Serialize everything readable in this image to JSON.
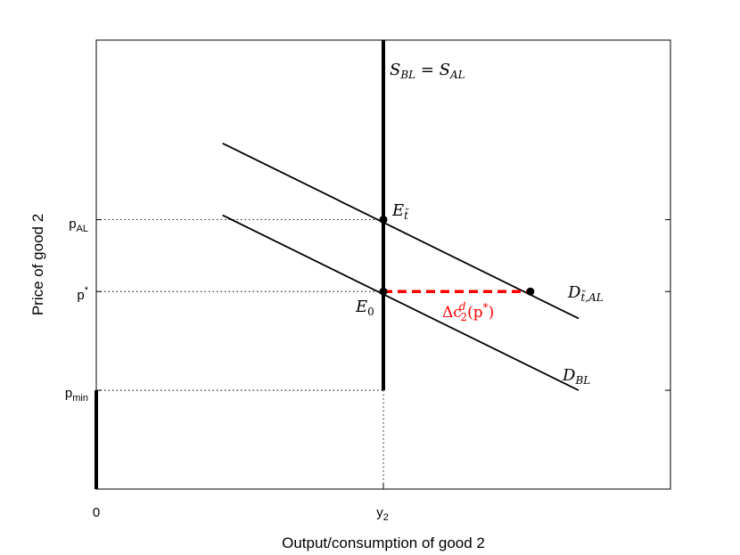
{
  "chart_data": {
    "type": "line",
    "xlabel": "Output/consumption of good 2",
    "ylabel": "Price of good 2",
    "x_ticks": [
      {
        "pos": 0,
        "label": "0",
        "sub": ""
      },
      {
        "pos": 0.5,
        "label": "y",
        "sub": "2"
      }
    ],
    "y_ticks": [
      {
        "pos": 0.22,
        "label": "p",
        "sub": "min",
        "sup": ""
      },
      {
        "pos": 0.44,
        "label": "p",
        "sub": "",
        "sup": "*"
      },
      {
        "pos": 0.6,
        "label": "p",
        "sub": "AL",
        "sup": ""
      }
    ],
    "xlim": [
      0,
      1
    ],
    "ylim": [
      0,
      1
    ],
    "series": [
      {
        "key": "supply",
        "points": [
          [
            0.5,
            0.22
          ],
          [
            0.5,
            1.0
          ]
        ],
        "color": "#000000"
      },
      {
        "key": "min_segment",
        "points": [
          [
            0,
            0
          ],
          [
            0,
            0.22
          ]
        ],
        "color": "#000000"
      },
      {
        "key": "demand_al",
        "points": [
          [
            0.22,
            0.77
          ],
          [
            0.84,
            0.38
          ]
        ],
        "color": "#000000"
      },
      {
        "key": "demand_bl",
        "points": [
          [
            0.22,
            0.61
          ],
          [
            0.84,
            0.22
          ]
        ],
        "color": "#000000"
      }
    ],
    "shift": {
      "from": [
        0.5,
        0.44
      ],
      "to": [
        0.756,
        0.44
      ],
      "color": "#ff0000"
    },
    "points": [
      {
        "key": "E_t",
        "xy": [
          0.5,
          0.6
        ]
      },
      {
        "key": "E0",
        "xy": [
          0.5,
          0.44
        ]
      },
      {
        "key": "D_end",
        "xy": [
          0.756,
          0.44
        ]
      }
    ],
    "annotations": {
      "supply": {
        "main": "S",
        "sub1": "BL",
        "eq": " = ",
        "main2": "S",
        "sub2": "AL"
      },
      "E_t": {
        "main": "E",
        "sub": "t̃"
      },
      "E0": {
        "main": "E",
        "sub": "0"
      },
      "D_al": {
        "main": "D",
        "sub": "t̃,AL"
      },
      "D_bl": {
        "main": "D",
        "sub": "BL"
      },
      "delta": {
        "pre": "Δc",
        "sup": "d",
        "sub": "2",
        "post": "(p",
        "post_sup": "*",
        "end": ")"
      }
    }
  }
}
